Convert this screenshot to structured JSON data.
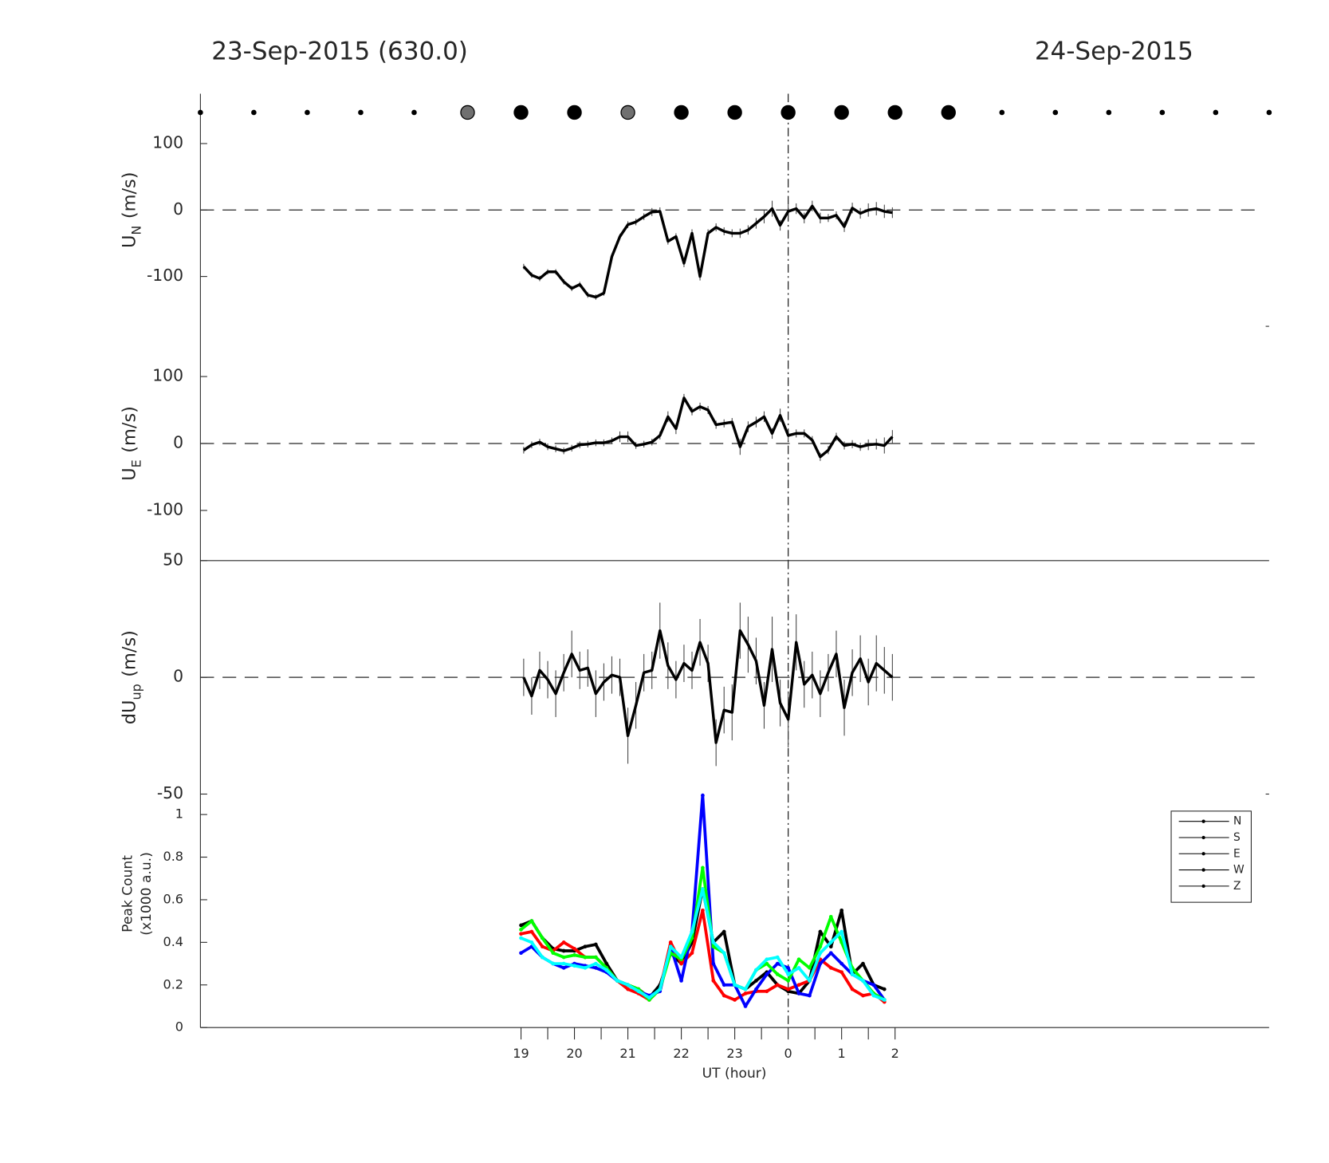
{
  "chart_data": [
    {
      "type": "line",
      "title": "23-Sep-2015 (630.0)",
      "title_right": "24-Sep-2015",
      "markers": {
        "x": [
          13,
          14,
          15,
          16,
          17,
          18,
          19,
          20,
          21,
          22,
          23,
          24,
          25,
          26,
          27,
          28,
          29,
          30,
          31,
          32,
          33
        ],
        "kind": [
          "small",
          "small",
          "small",
          "small",
          "small",
          "gray",
          "large",
          "large",
          "gray",
          "large",
          "large",
          "large",
          "large",
          "large",
          "large",
          "small",
          "small",
          "small",
          "small",
          "small",
          "small"
        ]
      },
      "ylabel": {
        "main": "U",
        "sub": "N",
        "unit": "(m/s)"
      },
      "xlim": [
        13,
        33
      ],
      "ylim": [
        -175,
        175
      ],
      "yticks": [
        -100,
        0,
        100
      ],
      "hline": 0,
      "vline": 24,
      "x": [
        19.05,
        19.2,
        19.35,
        19.5,
        19.65,
        19.8,
        19.95,
        20.1,
        20.25,
        20.4,
        20.55,
        20.7,
        20.85,
        21.0,
        21.15,
        21.3,
        21.45,
        21.6,
        21.75,
        21.9,
        22.05,
        22.2,
        22.35,
        22.5,
        22.65,
        22.8,
        22.95,
        23.1,
        23.25,
        23.4,
        23.55,
        23.7,
        23.85,
        24.0,
        24.15,
        24.3,
        24.45,
        24.6,
        24.75,
        24.9,
        25.05,
        25.2,
        25.35,
        25.5,
        25.65,
        25.8,
        25.95
      ],
      "series": [
        {
          "color": "#000000",
          "values": [
            -85,
            -98,
            -103,
            -93,
            -93,
            -108,
            -118,
            -112,
            -128,
            -131,
            -125,
            -70,
            -40,
            -22,
            -18,
            -10,
            -3,
            -2,
            -47,
            -40,
            -80,
            -35,
            -100,
            -35,
            -26,
            -32,
            -35,
            -35,
            -30,
            -20,
            -10,
            2,
            -23,
            -2,
            2,
            -12,
            6,
            -12,
            -12,
            -8,
            -25,
            3,
            -5,
            0,
            2,
            -2,
            -4
          ],
          "errors": [
            4,
            4,
            4,
            4,
            4,
            4,
            4,
            4,
            4,
            4,
            4,
            4,
            4,
            5,
            5,
            5,
            6,
            6,
            5,
            5,
            6,
            6,
            6,
            6,
            6,
            6,
            6,
            7,
            7,
            8,
            10,
            12,
            8,
            10,
            8,
            8,
            8,
            8,
            6,
            6,
            8,
            8,
            8,
            10,
            10,
            10,
            8
          ]
        }
      ]
    },
    {
      "type": "line",
      "ylabel": {
        "main": "U",
        "sub": "E",
        "unit": "(m/s)"
      },
      "xlim": [
        13,
        33
      ],
      "ylim": [
        -175,
        175
      ],
      "yticks": [
        -100,
        0,
        100
      ],
      "hline": 0,
      "vline": 24,
      "x": [
        19.05,
        19.2,
        19.35,
        19.5,
        19.65,
        19.8,
        19.95,
        20.1,
        20.25,
        20.4,
        20.55,
        20.7,
        20.85,
        21.0,
        21.15,
        21.3,
        21.45,
        21.6,
        21.75,
        21.9,
        22.05,
        22.2,
        22.35,
        22.5,
        22.65,
        22.8,
        22.95,
        23.1,
        23.25,
        23.4,
        23.55,
        23.7,
        23.85,
        24.0,
        24.15,
        24.3,
        24.45,
        24.6,
        24.75,
        24.9,
        25.05,
        25.2,
        25.35,
        25.5,
        25.65,
        25.8,
        25.95
      ],
      "series": [
        {
          "color": "#000000",
          "values": [
            -10,
            -2,
            2,
            -5,
            -8,
            -11,
            -7,
            -2,
            -1,
            1,
            1,
            4,
            10,
            10,
            -3,
            -1,
            2,
            12,
            40,
            22,
            68,
            48,
            55,
            50,
            28,
            30,
            32,
            -5,
            25,
            32,
            40,
            15,
            42,
            12,
            15,
            15,
            5,
            -20,
            -10,
            10,
            -3,
            -1,
            -5,
            -2,
            -1,
            -3,
            10
          ],
          "errors": [
            5,
            5,
            5,
            5,
            5,
            5,
            5,
            5,
            5,
            5,
            5,
            5,
            8,
            8,
            5,
            5,
            5,
            6,
            8,
            8,
            6,
            6,
            6,
            6,
            6,
            6,
            6,
            12,
            8,
            8,
            8,
            8,
            10,
            8,
            6,
            6,
            6,
            6,
            6,
            6,
            6,
            6,
            6,
            8,
            8,
            12,
            10
          ]
        }
      ]
    },
    {
      "type": "line",
      "ylabel": {
        "main": "dU",
        "sub": "up",
        "unit": "(m/s)"
      },
      "xlim": [
        13,
        33
      ],
      "ylim": [
        -50,
        50
      ],
      "yticks": [
        -50,
        0,
        50
      ],
      "hline": 0,
      "vline": 24,
      "x": [
        19.05,
        19.2,
        19.35,
        19.5,
        19.65,
        19.8,
        19.95,
        20.1,
        20.25,
        20.4,
        20.55,
        20.7,
        20.85,
        21.0,
        21.15,
        21.3,
        21.45,
        21.6,
        21.75,
        21.9,
        22.05,
        22.2,
        22.35,
        22.5,
        22.65,
        22.8,
        22.95,
        23.1,
        23.25,
        23.4,
        23.55,
        23.7,
        23.85,
        24.0,
        24.15,
        24.3,
        24.45,
        24.6,
        24.75,
        24.9,
        25.05,
        25.2,
        25.35,
        25.5,
        25.65,
        25.8,
        25.95
      ],
      "series": [
        {
          "color": "#000000",
          "values": [
            0,
            -8,
            3,
            -1,
            -7,
            2,
            10,
            3,
            4,
            -7,
            -2,
            1,
            0,
            -25,
            -12,
            2,
            3,
            20,
            5,
            -1,
            6,
            3,
            15,
            6,
            -28,
            -14,
            -15,
            20,
            14,
            7,
            -12,
            12,
            -11,
            -18,
            15,
            -3,
            1,
            -7,
            2,
            10,
            -13,
            2,
            8,
            -2,
            6,
            3,
            0
          ],
          "errors": [
            8,
            8,
            8,
            8,
            10,
            8,
            10,
            8,
            8,
            10,
            8,
            8,
            8,
            12,
            10,
            8,
            8,
            12,
            10,
            8,
            8,
            8,
            10,
            8,
            10,
            10,
            12,
            12,
            12,
            10,
            10,
            14,
            10,
            12,
            12,
            10,
            10,
            10,
            8,
            10,
            12,
            10,
            10,
            10,
            12,
            10,
            10
          ]
        }
      ]
    },
    {
      "type": "line",
      "ylabel": {
        "lines": [
          "Peak Count",
          "(x1000 a.u.)"
        ]
      },
      "xlabel": "UT (hour)",
      "xlim": [
        13,
        33
      ],
      "ylim": [
        0,
        1.096
      ],
      "yticks": [
        0,
        0.2,
        0.4,
        0.6,
        0.8,
        1
      ],
      "vline": 24,
      "xticks": [
        19,
        20,
        21,
        22,
        23,
        {
          "value": 24,
          "label": "0"
        },
        {
          "value": 25,
          "label": "1"
        },
        {
          "value": 26,
          "label": "2"
        }
      ],
      "xminor": [
        19.5,
        20.5,
        21.5,
        22.5,
        23.5,
        24.5,
        25.5
      ],
      "legend": "upper right",
      "legend_line_color": "#000000",
      "x": [
        19.0,
        19.2,
        19.4,
        19.6,
        19.8,
        20.0,
        20.2,
        20.4,
        20.6,
        20.8,
        21.0,
        21.2,
        21.4,
        21.6,
        21.8,
        22.0,
        22.2,
        22.4,
        22.6,
        22.8,
        23.0,
        23.2,
        23.4,
        23.6,
        23.8,
        24.0,
        24.2,
        24.4,
        24.6,
        24.8,
        25.0,
        25.2,
        25.4,
        25.6,
        25.8
      ],
      "series": [
        {
          "name": "N",
          "color": "#000000",
          "values": [
            0.48,
            0.5,
            0.42,
            0.37,
            0.36,
            0.36,
            0.38,
            0.39,
            0.3,
            0.22,
            0.2,
            0.18,
            0.14,
            0.2,
            0.35,
            0.3,
            0.4,
            0.65,
            0.4,
            0.45,
            0.2,
            0.18,
            0.22,
            0.26,
            0.2,
            0.17,
            0.16,
            0.22,
            0.45,
            0.38,
            0.55,
            0.25,
            0.3,
            0.2,
            0.18
          ]
        },
        {
          "name": "S",
          "color": "#ff0000",
          "values": [
            0.44,
            0.45,
            0.38,
            0.36,
            0.4,
            0.37,
            0.33,
            0.33,
            0.28,
            0.22,
            0.18,
            0.16,
            0.13,
            0.18,
            0.4,
            0.3,
            0.35,
            0.55,
            0.22,
            0.15,
            0.13,
            0.16,
            0.17,
            0.17,
            0.2,
            0.18,
            0.2,
            0.22,
            0.32,
            0.28,
            0.26,
            0.18,
            0.15,
            0.16,
            0.12
          ]
        },
        {
          "name": "E",
          "color": "#0000ff",
          "values": [
            0.35,
            0.38,
            0.33,
            0.3,
            0.28,
            0.3,
            0.29,
            0.28,
            0.26,
            0.22,
            0.2,
            0.17,
            0.15,
            0.17,
            0.38,
            0.22,
            0.45,
            1.09,
            0.3,
            0.2,
            0.2,
            0.1,
            0.18,
            0.25,
            0.3,
            0.28,
            0.16,
            0.15,
            0.3,
            0.35,
            0.3,
            0.25,
            0.22,
            0.2,
            0.13
          ]
        },
        {
          "name": "W",
          "color": "#00ff00",
          "values": [
            0.46,
            0.5,
            0.42,
            0.35,
            0.33,
            0.34,
            0.33,
            0.33,
            0.28,
            0.22,
            0.2,
            0.18,
            0.13,
            0.18,
            0.35,
            0.32,
            0.42,
            0.75,
            0.38,
            0.35,
            0.2,
            0.18,
            0.27,
            0.3,
            0.25,
            0.22,
            0.32,
            0.28,
            0.38,
            0.52,
            0.4,
            0.28,
            0.22,
            0.16,
            0.13
          ]
        },
        {
          "name": "Z",
          "color": "#00ffff",
          "values": [
            0.42,
            0.4,
            0.33,
            0.3,
            0.3,
            0.29,
            0.28,
            0.3,
            0.27,
            0.22,
            0.2,
            0.17,
            0.14,
            0.18,
            0.38,
            0.33,
            0.45,
            0.65,
            0.4,
            0.35,
            0.2,
            0.18,
            0.27,
            0.32,
            0.33,
            0.25,
            0.28,
            0.22,
            0.35,
            0.4,
            0.45,
            0.25,
            0.22,
            0.15,
            0.13
          ]
        }
      ]
    }
  ]
}
